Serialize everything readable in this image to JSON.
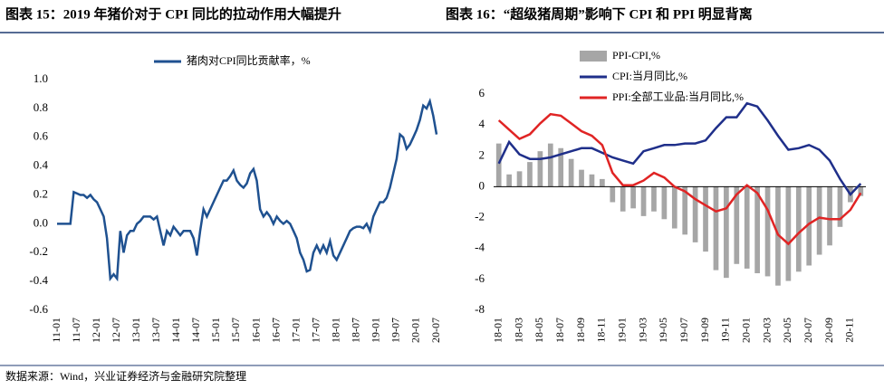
{
  "chart_data": [
    {
      "type": "line",
      "title": "图表 15：2019 年猪价对于 CPI 同比的拉动作用大幅提升",
      "categories": [
        "11-01",
        null,
        null,
        null,
        null,
        null,
        "11-07",
        null,
        null,
        null,
        null,
        null,
        "12-01",
        null,
        null,
        null,
        null,
        null,
        "12-07",
        null,
        null,
        null,
        null,
        null,
        "13-01",
        null,
        null,
        null,
        null,
        null,
        "13-07",
        null,
        null,
        null,
        null,
        null,
        "14-01",
        null,
        null,
        null,
        null,
        null,
        "14-07",
        null,
        null,
        null,
        null,
        null,
        "15-01",
        null,
        null,
        null,
        null,
        null,
        "15-07",
        null,
        null,
        null,
        null,
        null,
        "16-01",
        null,
        null,
        null,
        null,
        null,
        "16-07",
        null,
        null,
        null,
        null,
        null,
        "17-01",
        null,
        null,
        null,
        null,
        null,
        "17-07",
        null,
        null,
        null,
        null,
        null,
        "18-01",
        null,
        null,
        null,
        null,
        null,
        "18-07",
        null,
        null,
        null,
        null,
        null,
        "19-01",
        null,
        null,
        null,
        null,
        null,
        "19-07",
        null,
        null,
        null,
        null,
        null,
        "20-01",
        null,
        null,
        null,
        null,
        null,
        "20-07"
      ],
      "series": [
        {
          "name": "猪肉对CPI同比贡献率，%",
          "color": "#1f5190",
          "values": [
            0,
            0,
            0,
            0,
            0,
            0.22,
            0.21,
            0.2,
            0.2,
            0.18,
            0.2,
            0.17,
            0.15,
            0.1,
            0.05,
            -0.1,
            -0.38,
            -0.35,
            -0.38,
            -0.05,
            -0.2,
            -0.08,
            -0.05,
            -0.05,
            0,
            0.02,
            0.05,
            0.05,
            0.05,
            0.03,
            0.05,
            -0.05,
            -0.15,
            -0.05,
            -0.08,
            -0.02,
            -0.05,
            -0.08,
            -0.05,
            -0.05,
            -0.05,
            -0.1,
            -0.22,
            -0.05,
            0.1,
            0.05,
            0.1,
            0.15,
            0.2,
            0.25,
            0.3,
            0.3,
            0.33,
            0.37,
            0.3,
            0.27,
            0.25,
            0.28,
            0.35,
            0.38,
            0.3,
            0.1,
            0.05,
            0.08,
            0.05,
            0,
            0.05,
            0.02,
            0,
            0.02,
            0,
            -0.05,
            -0.1,
            -0.2,
            -0.25,
            -0.33,
            -0.32,
            -0.2,
            -0.15,
            -0.2,
            -0.15,
            -0.2,
            -0.12,
            -0.22,
            -0.25,
            -0.2,
            -0.15,
            -0.1,
            -0.05,
            -0.03,
            -0.02,
            -0.02,
            -0.03,
            0,
            -0.05,
            0.05,
            0.1,
            0.15,
            0.15,
            0.18,
            0.25,
            0.35,
            0.45,
            0.62,
            0.6,
            0.52,
            0.55,
            0.6,
            0.65,
            0.72,
            0.82,
            0.8,
            0.85,
            0.75,
            0.62
          ]
        }
      ],
      "ylim": [
        -0.6,
        1.0
      ],
      "yticks": [
        {
          "value": -0.6,
          "label": "-0.6"
        },
        -0.4,
        -0.2,
        {
          "value": 0,
          "label": "0.0"
        },
        0.2,
        0.4,
        0.6,
        0.8,
        {
          "value": 1,
          "label": "1.0"
        }
      ]
    },
    {
      "type": "combo",
      "title": "图表 16：“超级猪周期”影响下 CPI 和 PPI 明显背离",
      "categories": [
        "18-01",
        null,
        "18-03",
        null,
        "18-05",
        null,
        "18-07",
        null,
        "18-09",
        null,
        "18-11",
        null,
        "19-01",
        null,
        "19-03",
        null,
        "19-05",
        null,
        "19-07",
        null,
        "19-09",
        null,
        "19-11",
        null,
        "20-01",
        null,
        "20-03",
        null,
        "20-05",
        null,
        "20-07",
        null,
        "20-09",
        null,
        "20-11",
        null
      ],
      "series": [
        {
          "name": "PPI-CPI,%",
          "type": "bar",
          "color": "#a6a6a6",
          "values": [
            2.8,
            0.8,
            1.0,
            1.6,
            2.3,
            2.8,
            2.5,
            1.8,
            1.1,
            0.8,
            0.5,
            -1.0,
            -1.6,
            -1.4,
            -1.9,
            -1.6,
            -2.1,
            -2.7,
            -3.1,
            -3.6,
            -4.2,
            -5.4,
            -5.9,
            -5.0,
            -5.3,
            -5.6,
            -5.8,
            -6.4,
            -6.1,
            -5.5,
            -5.1,
            -4.4,
            -3.8,
            -2.6,
            -1.0,
            -0.6
          ]
        },
        {
          "name": "CPI:当月同比,%",
          "type": "line",
          "color": "#1f2f8a",
          "values": [
            1.5,
            2.9,
            2.1,
            1.8,
            1.8,
            1.9,
            2.1,
            2.3,
            2.5,
            2.5,
            2.2,
            1.9,
            1.7,
            1.5,
            2.3,
            2.5,
            2.7,
            2.7,
            2.8,
            2.8,
            3.0,
            3.8,
            4.5,
            4.5,
            5.4,
            5.2,
            4.3,
            3.3,
            2.4,
            2.5,
            2.7,
            2.4,
            1.7,
            0.5,
            -0.5,
            0.2
          ]
        },
        {
          "name": "PPI:全部工业品:当月同比,%",
          "type": "line",
          "color": "#e02424",
          "values": [
            4.3,
            3.7,
            3.1,
            3.4,
            4.1,
            4.7,
            4.6,
            4.1,
            3.6,
            3.3,
            2.7,
            0.9,
            0.1,
            0.1,
            0.4,
            0.9,
            0.6,
            0.0,
            -0.3,
            -0.8,
            -1.2,
            -1.6,
            -1.4,
            -0.5,
            0.1,
            -0.4,
            -1.5,
            -3.1,
            -3.7,
            -3.0,
            -2.4,
            -2.0,
            -2.1,
            -2.1,
            -1.5,
            -0.4
          ]
        }
      ],
      "ylim": [
        -8,
        6
      ],
      "yticks": [
        -8,
        -6,
        -4,
        -2,
        0,
        2,
        4,
        6
      ]
    }
  ],
  "source": "数据来源：Wind，兴业证券经济与金融研究院整理"
}
